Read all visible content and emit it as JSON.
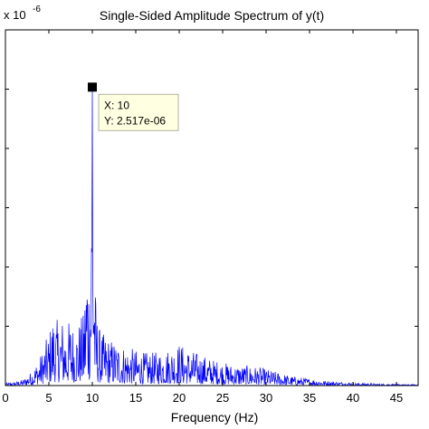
{
  "chart_data": {
    "type": "line",
    "title": "Single-Sided Amplitude Spectrum of y(t)",
    "xlabel": "Frequency (Hz)",
    "ylabel": "",
    "y_exponent_label": "x 10",
    "y_exponent_power": "-6",
    "xlim": [
      0,
      47.5
    ],
    "ylim": [
      0,
      3e-06
    ],
    "x_ticks": [
      0,
      5,
      10,
      15,
      20,
      25,
      30,
      35,
      40,
      45
    ],
    "x_tick_labels": [
      "0",
      "5",
      "10",
      "15",
      "20",
      "25",
      "30",
      "35",
      "40",
      "45"
    ],
    "y_ticks": [
      0,
      5e-07,
      1e-06,
      1.5e-06,
      2e-06,
      2.5e-06
    ],
    "grid": false,
    "series": [
      {
        "color": "#0000ff",
        "envelope": {
          "x": [
            0,
            1,
            2,
            3,
            4,
            5,
            5.5,
            6,
            6.5,
            7,
            7.5,
            8,
            8.5,
            9,
            9.4,
            9.7,
            10,
            10.3,
            10.6,
            11,
            12,
            13,
            14,
            15,
            16,
            17,
            18,
            19,
            20,
            21,
            22,
            23,
            24,
            25,
            26,
            27,
            28,
            29,
            30,
            31,
            32,
            33,
            34,
            35,
            36,
            37,
            38,
            39,
            40,
            41,
            42,
            43,
            44,
            45,
            46,
            47.5
          ],
          "y": [
            2e-08,
            3e-08,
            5e-08,
            1.2e-07,
            2.5e-07,
            4.5e-07,
            6.2e-07,
            5.5e-07,
            5.8e-07,
            5e-07,
            5.8e-07,
            4.8e-07,
            5.5e-07,
            6.2e-07,
            1.25e-06,
            9e-07,
            2.517e-06,
            8.8e-07,
            5.5e-07,
            4.5e-07,
            4e-07,
            3.6e-07,
            3.3e-07,
            3e-07,
            2.8e-07,
            2.8e-07,
            3e-07,
            3.2e-07,
            3.6e-07,
            3.1e-07,
            2.8e-07,
            2.5e-07,
            2.2e-07,
            2e-07,
            1.8e-07,
            1.7e-07,
            1.7e-07,
            1.6e-07,
            1.4e-07,
            1.2e-07,
            1e-07,
            8e-08,
            7e-08,
            6e-08,
            5e-08,
            4e-08,
            3.5e-08,
            3e-08,
            2.5e-08,
            2e-08,
            2e-08,
            1.5e-08,
            1.5e-08,
            1.2e-08,
            1e-08,
            1e-08
          ]
        }
      }
    ],
    "datatip": {
      "x_label": "X: 10",
      "y_label": "Y: 2.517e-06",
      "x": 10,
      "y": 2.517e-06
    }
  }
}
